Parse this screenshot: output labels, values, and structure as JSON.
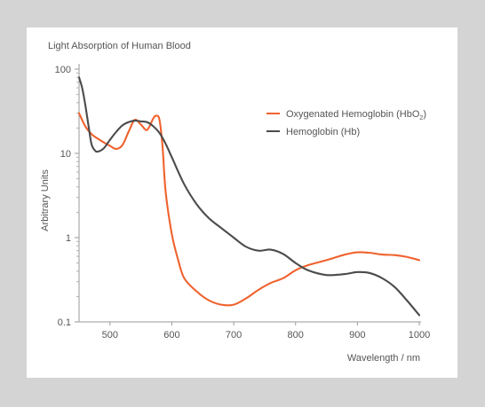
{
  "chart_data": {
    "type": "line",
    "title": "Light Absorption of Human Blood",
    "xlabel": "Wavelength / nm",
    "ylabel": "Arbitrary Units",
    "xlim": [
      450,
      1000
    ],
    "ylim": [
      0.1,
      100
    ],
    "y_scale": "log",
    "grid": false,
    "legend_position": "top-right",
    "x_ticks": [
      {
        "value": 500,
        "label": "500"
      },
      {
        "value": 600,
        "label": "600"
      },
      {
        "value": 700,
        "label": "700"
      },
      {
        "value": 800,
        "label": "800"
      },
      {
        "value": 900,
        "label": "900"
      },
      {
        "value": 1000,
        "label": "1000"
      }
    ],
    "y_ticks": [
      {
        "value": 100,
        "label": "100"
      },
      {
        "value": 10,
        "label": "10"
      },
      {
        "value": 1,
        "label": "1"
      },
      {
        "value": 0.1,
        "label": "0.1"
      }
    ],
    "series": [
      {
        "name": "Oxygenated Hemoglobin (HbO",
        "name_subscript": "2",
        "name_suffix": ")",
        "color": "#f0622e",
        "x": [
          450,
          460,
          470,
          480,
          490,
          500,
          510,
          520,
          530,
          540,
          550,
          560,
          570,
          575,
          580,
          585,
          590,
          600,
          610,
          620,
          640,
          660,
          680,
          700,
          720,
          740,
          760,
          780,
          800,
          820,
          850,
          880,
          900,
          920,
          940,
          960,
          980,
          1000
        ],
        "y": [
          30,
          21,
          17,
          15,
          13.5,
          12.3,
          11.3,
          12.5,
          18,
          25,
          22,
          19,
          26,
          28,
          25,
          12,
          3.5,
          1.1,
          0.55,
          0.33,
          0.23,
          0.18,
          0.16,
          0.16,
          0.19,
          0.24,
          0.29,
          0.33,
          0.41,
          0.47,
          0.54,
          0.63,
          0.67,
          0.66,
          0.63,
          0.62,
          0.59,
          0.54
        ]
      },
      {
        "name": "Hemoglobin (Hb)",
        "color": "#4b4b4b",
        "x": [
          450,
          455,
          460,
          465,
          470,
          475,
          480,
          490,
          500,
          510,
          520,
          530,
          540,
          550,
          560,
          570,
          580,
          590,
          600,
          620,
          640,
          660,
          680,
          700,
          720,
          740,
          760,
          780,
          800,
          820,
          850,
          880,
          900,
          920,
          940,
          960,
          980,
          1000
        ],
        "y": [
          80,
          60,
          38,
          22,
          13,
          11,
          10.5,
          11.5,
          14.5,
          18,
          21.5,
          23.5,
          24.5,
          24,
          23.5,
          21,
          17.5,
          13,
          9,
          4.3,
          2.5,
          1.7,
          1.3,
          1.0,
          0.78,
          0.7,
          0.72,
          0.64,
          0.5,
          0.41,
          0.36,
          0.37,
          0.39,
          0.38,
          0.33,
          0.26,
          0.18,
          0.12
        ]
      }
    ]
  }
}
